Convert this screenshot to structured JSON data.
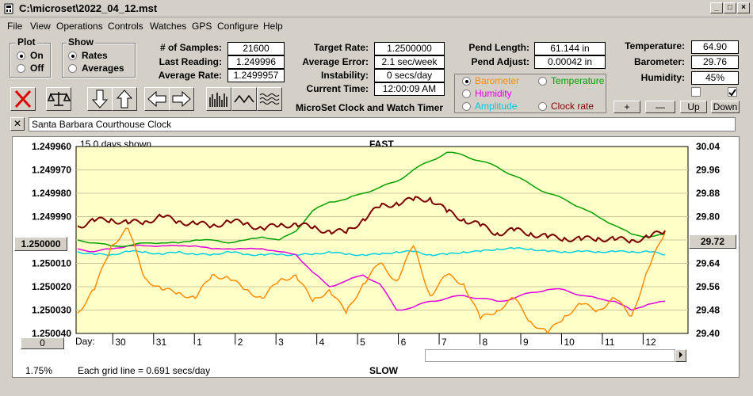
{
  "window": {
    "title": "C:\\microset\\2022_04_12.mst"
  },
  "menu": [
    "File",
    "View",
    "Operations",
    "Controls",
    "Watches",
    "GPS",
    "Configure",
    "Help"
  ],
  "plot": {
    "title": "Plot",
    "on": "On",
    "off": "Off"
  },
  "show": {
    "title": "Show",
    "rates": "Rates",
    "averages": "Averages"
  },
  "stats": {
    "samples_label": "# of Samples:",
    "samples": "21600",
    "last_label": "Last Reading:",
    "last": "1.249996",
    "avg_label": "Average Rate:",
    "avg": "1.2499957"
  },
  "target": {
    "rate_label": "Target Rate:",
    "rate": "1.2500000",
    "error_label": "Average Error:",
    "error": "2.1 sec/week",
    "instab_label": "Instability:",
    "instab": "0 secs/day",
    "time_label": "Current Time:",
    "time": "12:00:09 AM"
  },
  "pend": {
    "length_label": "Pend Length:",
    "length": "61.144 in",
    "adjust_label": "Pend Adjust:",
    "adjust": "0.00042 in"
  },
  "env": {
    "temp_label": "Temperature:",
    "temp": "64.90",
    "baro_label": "Barometer:",
    "baro": "29.76",
    "hum_label": "Humidity:",
    "hum": "45%"
  },
  "series_sel": {
    "barometer": "Barometer",
    "temperature": "Temperature",
    "humidity": "Humidity",
    "amplitude": "Amplitude",
    "clockrate": "Clock rate"
  },
  "adjust_buttons": {
    "plus": "+",
    "minus": "—",
    "up": "Up",
    "down": "Down"
  },
  "app_caption": "MicroSet Clock and Watch Timer",
  "clock_name": "Santa Barbara Courthouse Clock",
  "colors": {
    "rate": "#7a0000",
    "barometer": "#ff8c00",
    "temperature": "#00a000",
    "humidity": "#e000e0",
    "amplitude": "#00d0e0",
    "plotbg": "#ffffc8"
  },
  "chart_data": {
    "type": "line",
    "days_shown": "15.0 days shown",
    "top_label": "FAST",
    "bottom_label": "SLOW",
    "left_ticks": [
      "1.249960",
      "1.249970",
      "1.249980",
      "1.249990",
      "1.250000",
      "1.250010",
      "1.250020",
      "1.250030",
      "1.250040"
    ],
    "right_ticks": [
      "30.04",
      "29.96",
      "29.88",
      "29.80",
      "29.72",
      "29.64",
      "29.56",
      "29.48",
      "29.40"
    ],
    "center_left": "1.250000",
    "center_right": "29.72",
    "day_label": "Day:",
    "days": [
      "30",
      "31",
      "1",
      "2",
      "3",
      "4",
      "5",
      "6",
      "7",
      "8",
      "9",
      "10",
      "11",
      "12"
    ],
    "scroll_value": "0",
    "zoom": "1.75%",
    "grid_note": "Each grid line = 0.691 secs/day",
    "ylim_left": [
      1.24996,
      1.25004
    ],
    "ylim_right": [
      29.4,
      30.04
    ],
    "series": [
      {
        "key": "rate",
        "values": [
          1.249994,
          1.249992,
          1.249991,
          1.249993,
          1.249992,
          1.24999,
          1.249992,
          1.249993,
          1.249994,
          1.249992,
          1.249993,
          1.249995,
          1.249994,
          1.249993,
          1.249995,
          1.249996,
          1.249997,
          1.249991,
          1.249986,
          1.249984,
          1.249983,
          1.249982,
          1.249988,
          1.249991,
          1.249994,
          1.249997,
          1.249996,
          1.249997,
          1.249999,
          1.249999,
          1.25,
          1.249999,
          1.25,
          1.25,
          1.249999,
          1.249996
        ]
      },
      {
        "key": "barometer",
        "values": [
          29.47,
          29.55,
          29.7,
          29.76,
          29.59,
          29.55,
          29.54,
          29.52,
          29.6,
          29.59,
          29.55,
          29.52,
          29.58,
          29.6,
          29.51,
          29.55,
          29.47,
          29.57,
          29.64,
          29.58,
          29.7,
          29.53,
          29.6,
          29.57,
          29.45,
          29.48,
          29.52,
          29.44,
          29.4,
          29.46,
          29.5,
          29.48,
          29.52,
          29.46,
          29.62,
          29.75
        ]
      },
      {
        "key": "temperature",
        "values": [
          29.72,
          29.71,
          29.7,
          29.7,
          29.71,
          29.71,
          29.71,
          29.72,
          29.72,
          29.71,
          29.72,
          29.73,
          29.72,
          29.75,
          29.82,
          29.85,
          29.86,
          29.88,
          29.9,
          29.92,
          29.96,
          29.99,
          30.02,
          30.01,
          29.99,
          29.97,
          29.94,
          29.91,
          29.88,
          29.86,
          29.83,
          29.8,
          29.77,
          29.74,
          29.73,
          29.74
        ]
      },
      {
        "key": "humidity",
        "values": [
          29.69,
          29.68,
          29.69,
          29.7,
          29.7,
          29.7,
          29.7,
          29.7,
          29.69,
          29.69,
          29.69,
          29.69,
          29.68,
          29.67,
          29.61,
          29.56,
          29.58,
          29.6,
          29.57,
          29.48,
          29.49,
          29.51,
          29.52,
          29.53,
          29.52,
          29.51,
          29.52,
          29.54,
          29.55,
          29.55,
          29.53,
          29.52,
          29.51,
          29.48,
          29.5,
          29.51
        ]
      },
      {
        "key": "amplitude",
        "values": [
          29.68,
          29.67,
          29.67,
          29.68,
          29.68,
          29.67,
          29.68,
          29.67,
          29.67,
          29.68,
          29.67,
          29.67,
          29.67,
          29.67,
          29.67,
          29.68,
          29.67,
          29.67,
          29.67,
          29.68,
          29.68,
          29.67,
          29.67,
          29.68,
          29.68,
          29.69,
          29.69,
          29.69,
          29.68,
          29.68,
          29.68,
          29.68,
          29.68,
          29.68,
          29.68,
          29.67
        ]
      }
    ]
  }
}
